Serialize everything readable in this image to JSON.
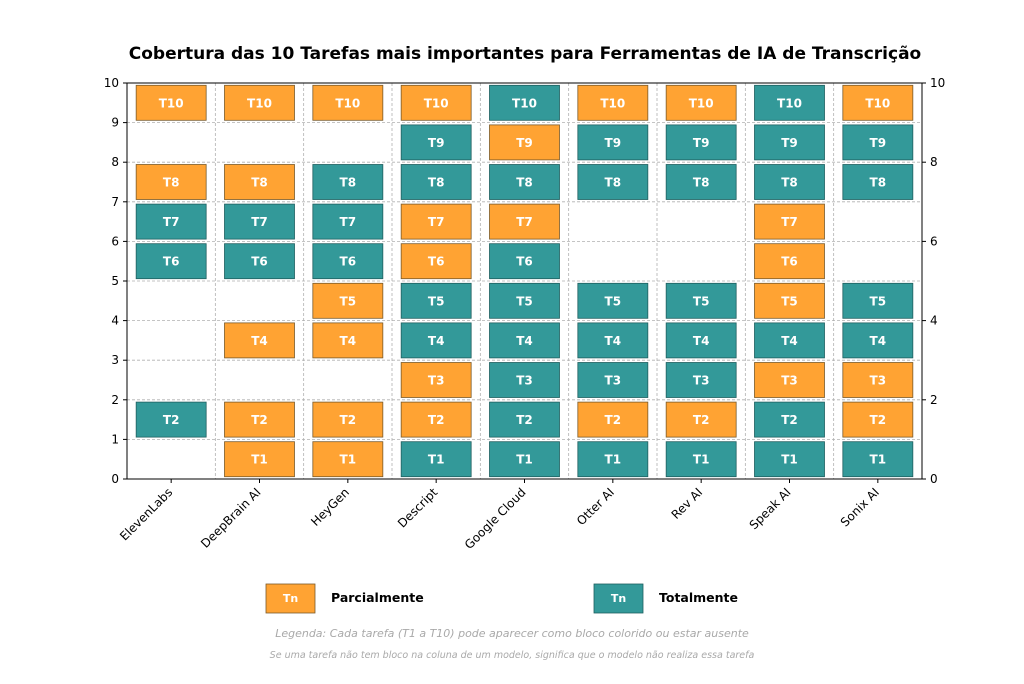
{
  "chart_data": {
    "type": "heatmap",
    "title": "Cobertura das 10 Tarefas mais importantes para Ferramentas de IA de Transcrição",
    "categories": [
      "ElevenLabs",
      "DeepBrain AI",
      "HeyGen",
      "Descript",
      "Google Cloud",
      "Otter AI",
      "Rev AI",
      "Speak AI",
      "Sonix AI"
    ],
    "ylim": [
      0,
      10
    ],
    "yticks_left": [
      0,
      1,
      2,
      3,
      4,
      5,
      6,
      7,
      8,
      9,
      10
    ],
    "yticks_right": [
      0,
      2,
      4,
      6,
      8,
      10
    ],
    "grid": true,
    "colors": {
      "partial": "#FFA333",
      "total": "#339999"
    },
    "series": [
      {
        "category": "ElevenLabs",
        "tasks": [
          {
            "label": "T2",
            "level": 2,
            "status": "total"
          },
          {
            "label": "T6",
            "level": 6,
            "status": "total"
          },
          {
            "label": "T7",
            "level": 7,
            "status": "total"
          },
          {
            "label": "T8",
            "level": 8,
            "status": "partial"
          },
          {
            "label": "T10",
            "level": 10,
            "status": "partial"
          }
        ]
      },
      {
        "category": "DeepBrain AI",
        "tasks": [
          {
            "label": "T1",
            "level": 1,
            "status": "partial"
          },
          {
            "label": "T2",
            "level": 2,
            "status": "partial"
          },
          {
            "label": "T4",
            "level": 4,
            "status": "partial"
          },
          {
            "label": "T6",
            "level": 6,
            "status": "total"
          },
          {
            "label": "T7",
            "level": 7,
            "status": "total"
          },
          {
            "label": "T8",
            "level": 8,
            "status": "partial"
          },
          {
            "label": "T10",
            "level": 10,
            "status": "partial"
          }
        ]
      },
      {
        "category": "HeyGen",
        "tasks": [
          {
            "label": "T1",
            "level": 1,
            "status": "partial"
          },
          {
            "label": "T2",
            "level": 2,
            "status": "partial"
          },
          {
            "label": "T4",
            "level": 4,
            "status": "partial"
          },
          {
            "label": "T5",
            "level": 5,
            "status": "partial"
          },
          {
            "label": "T6",
            "level": 6,
            "status": "total"
          },
          {
            "label": "T7",
            "level": 7,
            "status": "total"
          },
          {
            "label": "T8",
            "level": 8,
            "status": "total"
          },
          {
            "label": "T10",
            "level": 10,
            "status": "partial"
          }
        ]
      },
      {
        "category": "Descript",
        "tasks": [
          {
            "label": "T1",
            "level": 1,
            "status": "total"
          },
          {
            "label": "T2",
            "level": 2,
            "status": "partial"
          },
          {
            "label": "T3",
            "level": 3,
            "status": "partial"
          },
          {
            "label": "T4",
            "level": 4,
            "status": "total"
          },
          {
            "label": "T5",
            "level": 5,
            "status": "total"
          },
          {
            "label": "T6",
            "level": 6,
            "status": "partial"
          },
          {
            "label": "T7",
            "level": 7,
            "status": "partial"
          },
          {
            "label": "T8",
            "level": 8,
            "status": "total"
          },
          {
            "label": "T9",
            "level": 9,
            "status": "total"
          },
          {
            "label": "T10",
            "level": 10,
            "status": "partial"
          }
        ]
      },
      {
        "category": "Google Cloud",
        "tasks": [
          {
            "label": "T1",
            "level": 1,
            "status": "total"
          },
          {
            "label": "T2",
            "level": 2,
            "status": "total"
          },
          {
            "label": "T3",
            "level": 3,
            "status": "total"
          },
          {
            "label": "T4",
            "level": 4,
            "status": "total"
          },
          {
            "label": "T5",
            "level": 5,
            "status": "total"
          },
          {
            "label": "T6",
            "level": 6,
            "status": "total"
          },
          {
            "label": "T7",
            "level": 7,
            "status": "partial"
          },
          {
            "label": "T8",
            "level": 8,
            "status": "total"
          },
          {
            "label": "T9",
            "level": 9,
            "status": "partial"
          },
          {
            "label": "T10",
            "level": 10,
            "status": "total"
          }
        ]
      },
      {
        "category": "Otter AI",
        "tasks": [
          {
            "label": "T1",
            "level": 1,
            "status": "total"
          },
          {
            "label": "T2",
            "level": 2,
            "status": "partial"
          },
          {
            "label": "T3",
            "level": 3,
            "status": "total"
          },
          {
            "label": "T4",
            "level": 4,
            "status": "total"
          },
          {
            "label": "T5",
            "level": 5,
            "status": "total"
          },
          {
            "label": "T8",
            "level": 8,
            "status": "total"
          },
          {
            "label": "T9",
            "level": 9,
            "status": "total"
          },
          {
            "label": "T10",
            "level": 10,
            "status": "partial"
          }
        ]
      },
      {
        "category": "Rev AI",
        "tasks": [
          {
            "label": "T1",
            "level": 1,
            "status": "total"
          },
          {
            "label": "T2",
            "level": 2,
            "status": "partial"
          },
          {
            "label": "T3",
            "level": 3,
            "status": "total"
          },
          {
            "label": "T4",
            "level": 4,
            "status": "total"
          },
          {
            "label": "T5",
            "level": 5,
            "status": "total"
          },
          {
            "label": "T8",
            "level": 8,
            "status": "total"
          },
          {
            "label": "T9",
            "level": 9,
            "status": "total"
          },
          {
            "label": "T10",
            "level": 10,
            "status": "partial"
          }
        ]
      },
      {
        "category": "Speak AI",
        "tasks": [
          {
            "label": "T1",
            "level": 1,
            "status": "total"
          },
          {
            "label": "T2",
            "level": 2,
            "status": "total"
          },
          {
            "label": "T3",
            "level": 3,
            "status": "partial"
          },
          {
            "label": "T4",
            "level": 4,
            "status": "total"
          },
          {
            "label": "T5",
            "level": 5,
            "status": "partial"
          },
          {
            "label": "T6",
            "level": 6,
            "status": "partial"
          },
          {
            "label": "T7",
            "level": 7,
            "status": "partial"
          },
          {
            "label": "T8",
            "level": 8,
            "status": "total"
          },
          {
            "label": "T9",
            "level": 9,
            "status": "total"
          },
          {
            "label": "T10",
            "level": 10,
            "status": "total"
          }
        ]
      },
      {
        "category": "Sonix AI",
        "tasks": [
          {
            "label": "T1",
            "level": 1,
            "status": "total"
          },
          {
            "label": "T2",
            "level": 2,
            "status": "partial"
          },
          {
            "label": "T3",
            "level": 3,
            "status": "partial"
          },
          {
            "label": "T4",
            "level": 4,
            "status": "total"
          },
          {
            "label": "T5",
            "level": 5,
            "status": "total"
          },
          {
            "label": "T8",
            "level": 8,
            "status": "total"
          },
          {
            "label": "T9",
            "level": 9,
            "status": "total"
          },
          {
            "label": "T10",
            "level": 10,
            "status": "partial"
          }
        ]
      }
    ],
    "legend": {
      "placement": "bottom",
      "entries": [
        {
          "status": "partial",
          "swatch_text": "Tn",
          "label": "Parcialmente"
        },
        {
          "status": "total",
          "swatch_text": "Tn",
          "label": "Totalmente"
        }
      ]
    },
    "notes": [
      "Legenda: Cada tarefa (T1 a T10) pode aparecer como bloco colorido ou estar ausente",
      "Se uma tarefa não tem bloco na coluna de um modelo, significa que o modelo não realiza essa tarefa"
    ]
  }
}
